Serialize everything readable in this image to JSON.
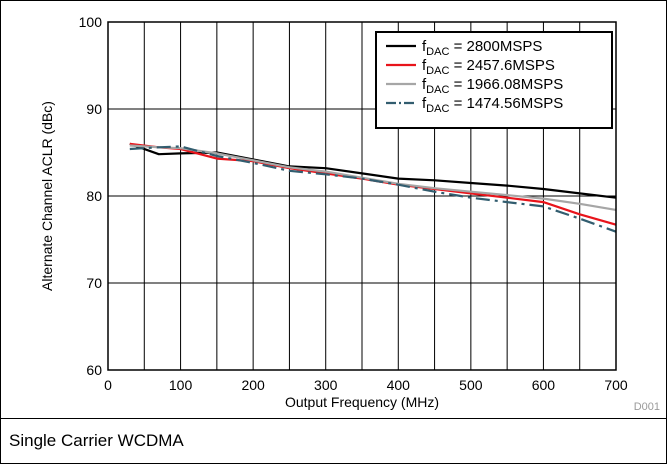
{
  "caption": "Single Carrier WCDMA",
  "code": "D001",
  "chart_data": {
    "type": "line",
    "xlabel": "Output Frequency (MHz)",
    "ylabel": "Alternate Channel ACLR (dBc)",
    "xlim": [
      0,
      700
    ],
    "ylim": [
      60,
      100
    ],
    "x_ticks": [
      0,
      100,
      200,
      300,
      400,
      500,
      600,
      700
    ],
    "y_ticks": [
      60,
      70,
      80,
      90,
      100
    ],
    "grid": true,
    "legend_position": "top-right",
    "series": [
      {
        "name": "fDAC = 2800MSPS",
        "label_main": "f",
        "label_sub": "DAC",
        "label_rest": " = 2800MSPS",
        "color": "#000000",
        "dash": "solid",
        "x": [
          30,
          70,
          100,
          150,
          200,
          250,
          300,
          350,
          400,
          450,
          500,
          550,
          600,
          650,
          700
        ],
        "y": [
          86.0,
          84.8,
          84.9,
          85.0,
          84.2,
          83.4,
          83.2,
          82.6,
          82.0,
          81.8,
          81.5,
          81.2,
          80.8,
          80.3,
          79.8
        ]
      },
      {
        "name": "fDAC = 2457.6MSPS",
        "label_main": "f",
        "label_sub": "DAC",
        "label_rest": " = 2457.6MSPS",
        "color": "#e8141b",
        "dash": "solid",
        "x": [
          30,
          70,
          100,
          150,
          200,
          250,
          300,
          350,
          400,
          450,
          500,
          550,
          600,
          650,
          700
        ],
        "y": [
          86.0,
          85.6,
          85.4,
          84.3,
          84.0,
          83.2,
          82.6,
          82.0,
          81.3,
          80.8,
          80.3,
          79.8,
          79.3,
          77.9,
          76.7
        ]
      },
      {
        "name": "fDAC = 1966.08MSPS",
        "label_main": "f",
        "label_sub": "DAC",
        "label_rest": " = 1966.08MSPS",
        "color": "#a6a6a6",
        "dash": "solid",
        "x": [
          30,
          70,
          100,
          150,
          200,
          250,
          300,
          350,
          400,
          450,
          500,
          550,
          600,
          650,
          700
        ],
        "y": [
          85.8,
          85.6,
          85.5,
          84.9,
          84.1,
          83.3,
          82.8,
          82.1,
          81.4,
          80.9,
          80.5,
          80.1,
          79.7,
          79.1,
          78.4
        ]
      },
      {
        "name": "fDAC = 1474.56MSPS",
        "label_main": "f",
        "label_sub": "DAC",
        "label_rest": " = 1474.56MSPS",
        "color": "#325d6f",
        "dash": "dashdot",
        "x": [
          30,
          70,
          100,
          150,
          200,
          250,
          300,
          350,
          400,
          450,
          500,
          550,
          600,
          650,
          700
        ],
        "y": [
          85.4,
          85.6,
          85.7,
          84.6,
          83.8,
          82.9,
          82.5,
          82.0,
          81.3,
          80.5,
          79.8,
          79.3,
          78.8,
          77.4,
          75.9
        ]
      }
    ]
  }
}
